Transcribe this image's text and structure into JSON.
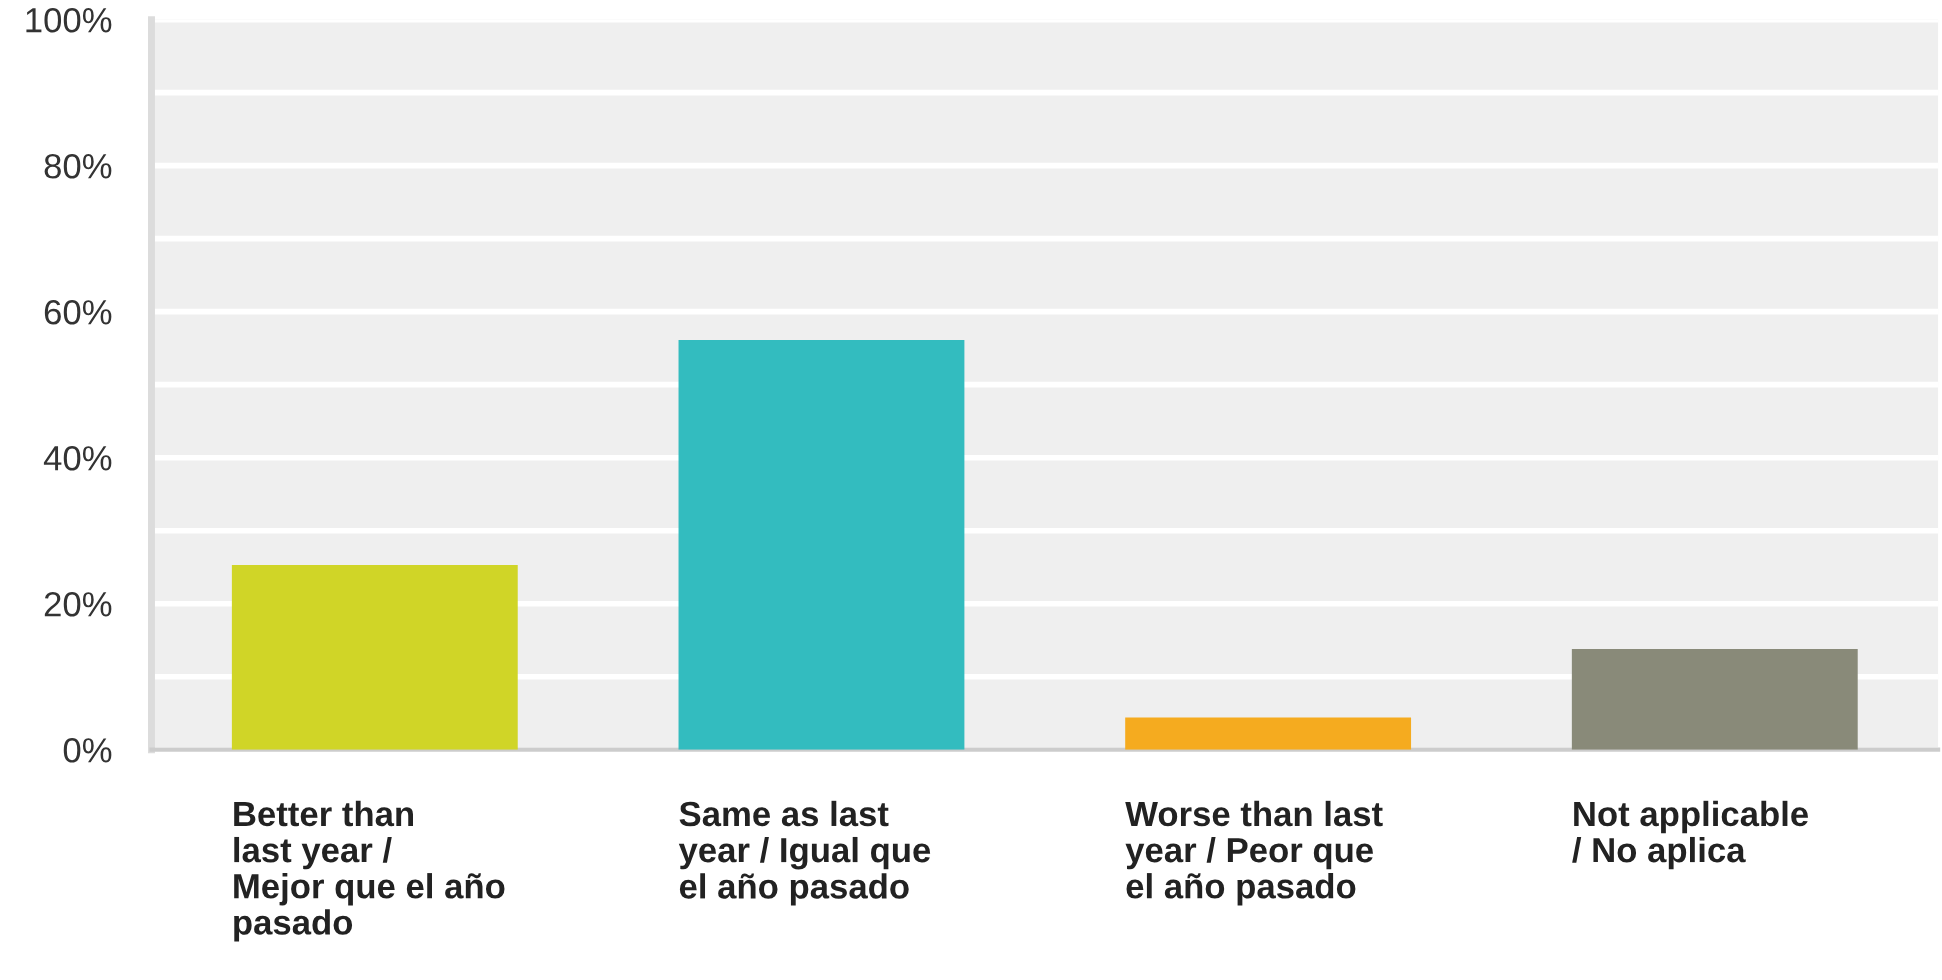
{
  "chart_data": {
    "type": "bar",
    "categories": [
      "Better than\nlast year /\nMejor que el año\npasado",
      "Same as last\nyear / Igual que\nel año pasado",
      "Worse than last\nyear / Peor que\nel año pasado",
      "Not applicable\n/ No aplica"
    ],
    "values": [
      25.3,
      56.1,
      4.4,
      13.8
    ],
    "colors": [
      "#d0d527",
      "#33bcbf",
      "#f5ab1f",
      "#898a79"
    ],
    "ylim": [
      0,
      100
    ],
    "yticks": [
      {
        "value": 0,
        "label": "0%"
      },
      {
        "value": 10,
        "label": null
      },
      {
        "value": 20,
        "label": "20%"
      },
      {
        "value": 30,
        "label": null
      },
      {
        "value": 40,
        "label": "40%"
      },
      {
        "value": 50,
        "label": null
      },
      {
        "value": 60,
        "label": "60%"
      },
      {
        "value": 70,
        "label": null
      },
      {
        "value": 80,
        "label": "80%"
      },
      {
        "value": 90,
        "label": null
      },
      {
        "value": 100,
        "label": "100%"
      }
    ],
    "grid": "y"
  }
}
